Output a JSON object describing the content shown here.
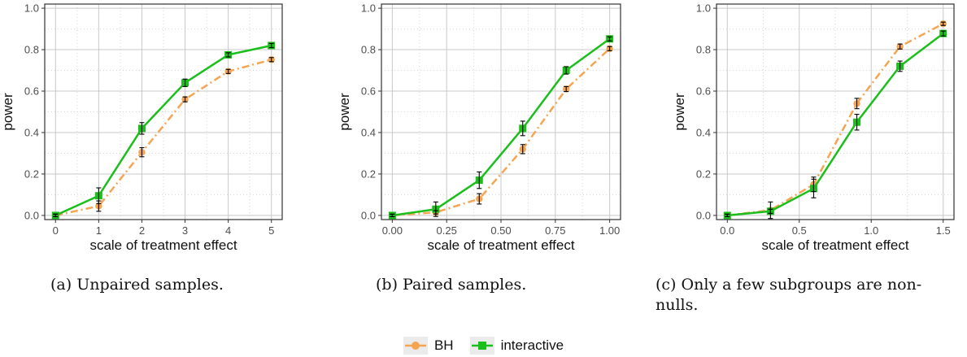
{
  "chart_data": [
    {
      "type": "line",
      "caption": "(a) Unpaired samples.",
      "xlabel": "scale of treatment effect",
      "ylabel": "power",
      "xlim": [
        -0.25,
        5.25
      ],
      "ylim": [
        -0.02,
        1.02
      ],
      "x_ticks": [
        0,
        1,
        2,
        3,
        4,
        5
      ],
      "x_tick_labels": [
        "0",
        "1",
        "2",
        "3",
        "4",
        "5"
      ],
      "y_ticks": [
        0,
        0.2,
        0.4,
        0.6,
        0.8,
        1.0
      ],
      "y_tick_labels": [
        "0.0",
        "0.2",
        "0.4",
        "0.6",
        "0.8",
        "1.0"
      ],
      "grid": true,
      "series": [
        {
          "name": "BH",
          "x": [
            0,
            1,
            2,
            3,
            4,
            5
          ],
          "values": [
            0.0,
            0.045,
            0.305,
            0.56,
            0.695,
            0.752
          ],
          "err": [
            0.006,
            0.025,
            0.022,
            0.012,
            0.01,
            0.01
          ]
        },
        {
          "name": "interactive",
          "x": [
            0,
            1,
            2,
            3,
            4,
            5
          ],
          "values": [
            0.0,
            0.095,
            0.42,
            0.64,
            0.775,
            0.82
          ],
          "err": [
            0.006,
            0.038,
            0.028,
            0.018,
            0.01,
            0.01
          ]
        }
      ]
    },
    {
      "type": "line",
      "caption": "(b) Paired samples.",
      "xlabel": "scale of treatment effect",
      "ylabel": "power",
      "xlim": [
        -0.05,
        1.05
      ],
      "ylim": [
        -0.02,
        1.02
      ],
      "x_ticks": [
        0,
        0.25,
        0.5,
        0.75,
        1.0
      ],
      "x_tick_labels": [
        "0.00",
        "0.25",
        "0.50",
        "0.75",
        "1.00"
      ],
      "y_ticks": [
        0,
        0.2,
        0.4,
        0.6,
        0.8,
        1.0
      ],
      "y_tick_labels": [
        "0.0",
        "0.2",
        "0.4",
        "0.6",
        "0.8",
        "1.0"
      ],
      "grid": true,
      "series": [
        {
          "name": "BH",
          "x": [
            0,
            0.2,
            0.4,
            0.6,
            0.8,
            1.0
          ],
          "values": [
            0.0,
            0.015,
            0.08,
            0.32,
            0.61,
            0.805
          ],
          "err": [
            0.006,
            0.008,
            0.025,
            0.022,
            0.012,
            0.01
          ]
        },
        {
          "name": "interactive",
          "x": [
            0,
            0.2,
            0.4,
            0.6,
            0.8,
            1.0
          ],
          "values": [
            0.0,
            0.03,
            0.17,
            0.42,
            0.7,
            0.852
          ],
          "err": [
            0.006,
            0.035,
            0.04,
            0.035,
            0.018,
            0.01
          ]
        }
      ]
    },
    {
      "type": "line",
      "caption": "(c) Only a few subgroups are non-nulls.",
      "caption_lines": [
        "(c) Only a few subgroups are non-",
        "nulls."
      ],
      "xlabel": "scale of treatment effect",
      "ylabel": "power",
      "xlim": [
        -0.075,
        1.575
      ],
      "ylim": [
        -0.02,
        1.02
      ],
      "x_ticks": [
        0,
        0.5,
        1.0,
        1.5
      ],
      "x_tick_labels": [
        "0.0",
        "0.5",
        "1.0",
        "1.5"
      ],
      "y_ticks": [
        0,
        0.2,
        0.4,
        0.6,
        0.8,
        1.0
      ],
      "y_tick_labels": [
        "0.0",
        "0.2",
        "0.4",
        "0.6",
        "0.8",
        "1.0"
      ],
      "grid": true,
      "series": [
        {
          "name": "BH",
          "x": [
            0,
            0.3,
            0.6,
            0.9,
            1.2,
            1.5
          ],
          "values": [
            0.0,
            0.025,
            0.15,
            0.54,
            0.815,
            0.925
          ],
          "err": [
            0.006,
            0.04,
            0.035,
            0.025,
            0.012,
            0.008
          ]
        },
        {
          "name": "interactive",
          "x": [
            0,
            0.3,
            0.6,
            0.9,
            1.2,
            1.5
          ],
          "values": [
            0.0,
            0.02,
            0.13,
            0.45,
            0.72,
            0.878
          ],
          "err": [
            0.006,
            0.01,
            0.045,
            0.038,
            0.025,
            0.012
          ]
        }
      ]
    }
  ],
  "legend": {
    "position": "bottom-center",
    "items": [
      {
        "label": "BH",
        "color": "#f5a552",
        "marker": "circle",
        "linestyle": "dashdot"
      },
      {
        "label": "interactive",
        "color": "#1bbf1b",
        "marker": "square",
        "linestyle": "solid"
      }
    ]
  },
  "colors": {
    "bh": "#f5a552",
    "interactive": "#1bbf1b",
    "grid_major": "#c8c8c8",
    "grid_minor": "#d6d6d6",
    "panel_border": "#333333"
  }
}
